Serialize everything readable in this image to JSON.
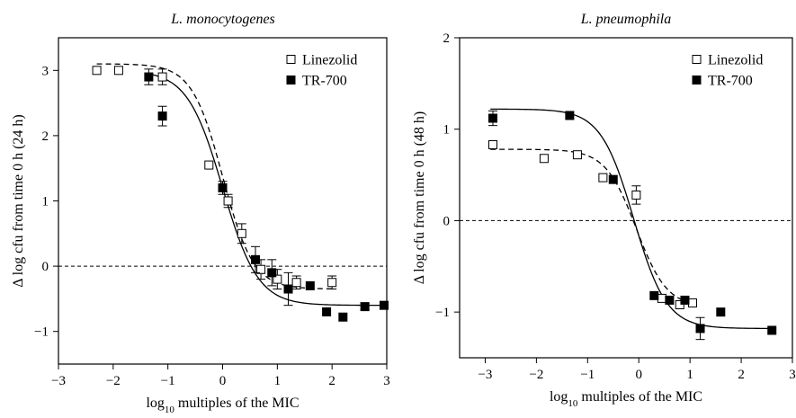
{
  "chart_data": [
    {
      "type": "scatter",
      "title": "L. monocytogenes",
      "xlabel": {
        "prefix": "log",
        "sub": "10",
        "suffix": " multiples of the MIC"
      },
      "ylabel": "Δ log cfu from time 0 h (24 h)",
      "xlim": [
        -3,
        3
      ],
      "ylim": [
        -1.5,
        3.5
      ],
      "xticks": [
        -3,
        -2,
        -1,
        0,
        1,
        2,
        3
      ],
      "yticks": [
        -1,
        0,
        1,
        2,
        3
      ],
      "xtick_labels": [
        "−3",
        "−2",
        "−1",
        "0",
        "1",
        "2",
        "3"
      ],
      "ytick_labels": [
        "−1",
        "0",
        "1",
        "2",
        "3"
      ],
      "reference_line_y": 0,
      "legend_position": "top-right",
      "series": [
        {
          "name": "Linezolid",
          "marker": "open-square",
          "curve": "dashed",
          "fit": {
            "bottom": -0.35,
            "top": 3.1,
            "ec50": 0.0,
            "slope": 1.55,
            "x_range": [
              -2.3,
              2.0
            ]
          },
          "points": [
            {
              "x": -2.3,
              "y": 3.0
            },
            {
              "x": -1.9,
              "y": 3.0
            },
            {
              "x": -1.1,
              "y": 2.9,
              "err": 0.12
            },
            {
              "x": -0.25,
              "y": 1.55
            },
            {
              "x": 0.1,
              "y": 1.0,
              "err": 0.1
            },
            {
              "x": 0.35,
              "y": 0.5,
              "err": 0.15
            },
            {
              "x": 0.7,
              "y": -0.05,
              "err": 0.15
            },
            {
              "x": 1.0,
              "y": -0.2,
              "err": 0.15
            },
            {
              "x": 1.35,
              "y": -0.25,
              "err": 0.1
            },
            {
              "x": 2.0,
              "y": -0.25,
              "err": 0.1
            }
          ]
        },
        {
          "name": "TR-700",
          "marker": "filled-square",
          "curve": "solid",
          "fit": {
            "bottom": -0.6,
            "top": 3.0,
            "ec50": 0.0,
            "slope": 1.35,
            "x_range": [
              -1.4,
              2.9
            ]
          },
          "points": [
            {
              "x": -1.35,
              "y": 2.9,
              "err": 0.12
            },
            {
              "x": -1.1,
              "y": 2.3,
              "err": 0.15
            },
            {
              "x": 0.0,
              "y": 1.2,
              "err": 0.1
            },
            {
              "x": 0.6,
              "y": 0.1,
              "err": 0.2
            },
            {
              "x": 0.9,
              "y": -0.1,
              "err": 0.2
            },
            {
              "x": 1.2,
              "y": -0.35,
              "err": 0.25
            },
            {
              "x": 1.6,
              "y": -0.3
            },
            {
              "x": 1.9,
              "y": -0.7
            },
            {
              "x": 2.2,
              "y": -0.78
            },
            {
              "x": 2.6,
              "y": -0.62,
              "err": 0.05
            },
            {
              "x": 2.95,
              "y": -0.6,
              "err": 0.05
            }
          ]
        }
      ]
    },
    {
      "type": "scatter",
      "title": "L. pneumophila",
      "xlabel": {
        "prefix": "log",
        "sub": "10",
        "suffix": " multiples of the MIC"
      },
      "ylabel": "Δ log cfu from time 0 h (48 h)",
      "xlim": [
        -3.5,
        3
      ],
      "ylim": [
        -1.5,
        2
      ],
      "xticks": [
        -3,
        -2,
        -1,
        0,
        1,
        2,
        3
      ],
      "yticks": [
        -1,
        0,
        1,
        2
      ],
      "xtick_labels": [
        "−3",
        "−2",
        "−1",
        "0",
        "1",
        "2",
        "3"
      ],
      "ytick_labels": [
        "−1",
        "0",
        "1",
        "2"
      ],
      "reference_line_y": 0,
      "legend_position": "top-right",
      "series": [
        {
          "name": "Linezolid",
          "marker": "open-square",
          "curve": "dashed",
          "fit": {
            "bottom": -0.95,
            "top": 0.78,
            "ec50": -0.05,
            "slope": 1.45,
            "x_range": [
              -2.9,
              1.0
            ]
          },
          "points": [
            {
              "x": -2.85,
              "y": 0.83
            },
            {
              "x": -1.85,
              "y": 0.68
            },
            {
              "x": -1.2,
              "y": 0.72
            },
            {
              "x": -0.7,
              "y": 0.47
            },
            {
              "x": -0.05,
              "y": 0.28,
              "err": 0.1
            },
            {
              "x": 0.45,
              "y": -0.85
            },
            {
              "x": 0.8,
              "y": -0.92
            },
            {
              "x": 1.05,
              "y": -0.9
            }
          ]
        },
        {
          "name": "TR-700",
          "marker": "filled-square",
          "curve": "solid",
          "fit": {
            "bottom": -1.18,
            "top": 1.22,
            "ec50": -0.1,
            "slope": 1.35,
            "x_range": [
              -2.9,
              2.65
            ]
          },
          "points": [
            {
              "x": -2.85,
              "y": 1.12,
              "err": 0.08
            },
            {
              "x": -1.35,
              "y": 1.15
            },
            {
              "x": -0.5,
              "y": 0.45
            },
            {
              "x": 0.3,
              "y": -0.82
            },
            {
              "x": 0.6,
              "y": -0.87
            },
            {
              "x": 0.9,
              "y": -0.87
            },
            {
              "x": 1.2,
              "y": -1.18,
              "err": 0.12
            },
            {
              "x": 1.6,
              "y": -1.0
            },
            {
              "x": 2.6,
              "y": -1.2
            }
          ]
        }
      ]
    }
  ]
}
